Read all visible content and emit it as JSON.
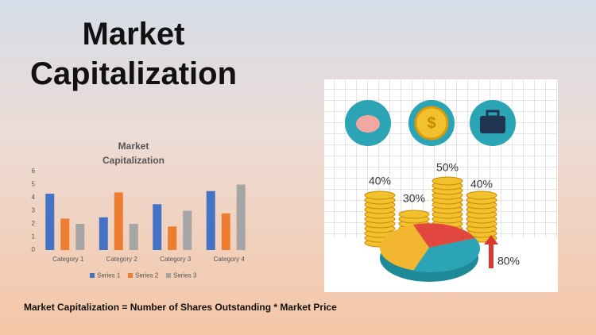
{
  "title": "Market Capitalization",
  "chart_data": {
    "type": "bar",
    "title": "Market Capitalization",
    "categories": [
      "Category 1",
      "Category 2",
      "Category 3",
      "Category 4"
    ],
    "series": [
      {
        "name": "Series 1",
        "color": "#4472c4",
        "values": [
          4.3,
          2.5,
          3.5,
          4.5
        ]
      },
      {
        "name": "Series 2",
        "color": "#ed7d31",
        "values": [
          2.4,
          4.4,
          1.8,
          2.8
        ]
      },
      {
        "name": "Series 3",
        "color": "#a5a5a5",
        "values": [
          2.0,
          2.0,
          3.0,
          5.0
        ]
      }
    ],
    "ylim": [
      0,
      6
    ],
    "yticks": [
      0,
      1,
      2,
      3,
      4,
      5,
      6
    ],
    "grid": false,
    "legend": "bottom"
  },
  "illustration": {
    "labels": [
      "40%",
      "30%",
      "50%",
      "40%",
      "80%"
    ]
  },
  "formula": "Market Capitalization = Number of Shares Outstanding * Market Price"
}
